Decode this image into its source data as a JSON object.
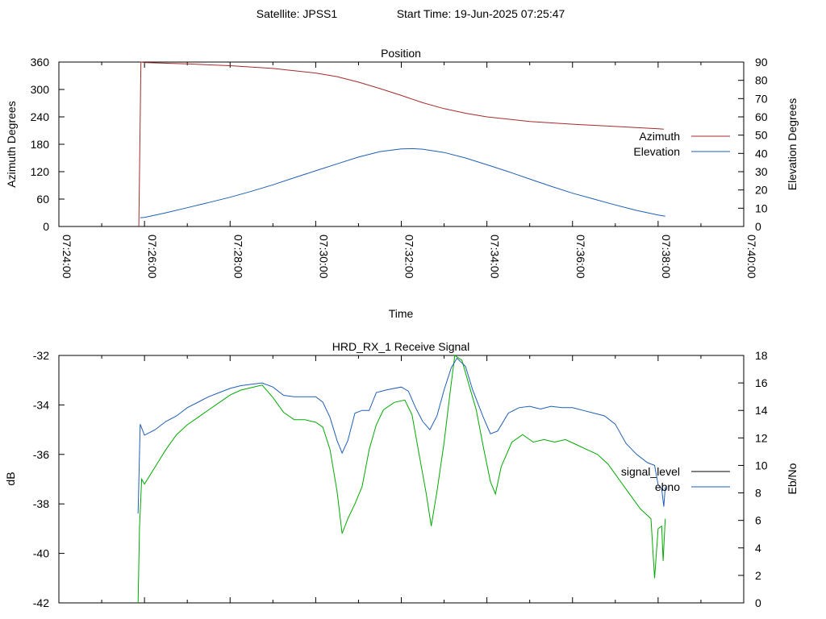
{
  "header": {
    "satellite": "Satellite: JPSS1",
    "start_time": "Start Time: 19-Jun-2025 07:25:47"
  },
  "chart_data": [
    {
      "type": "line",
      "title": "Position",
      "xlabel": "Time",
      "ylabel": "Azimuth Degrees",
      "y2label": "Elevation Degrees",
      "xlim": [
        "07:24:00",
        "07:40:00"
      ],
      "x_ticks": [
        "07:24:00",
        "07:26:00",
        "07:28:00",
        "07:30:00",
        "07:32:00",
        "07:34:00",
        "07:36:00",
        "07:38:00",
        "07:40:00"
      ],
      "ylim": [
        0,
        360
      ],
      "y_ticks": [
        "0",
        "60",
        "120",
        "180",
        "240",
        "300",
        "360"
      ],
      "y2lim": [
        0,
        90
      ],
      "y2_ticks": [
        "0",
        "10",
        "20",
        "30",
        "40",
        "50",
        "60",
        "70",
        "80",
        "90"
      ],
      "legend_position": "right",
      "series": [
        {
          "name": "Azimuth",
          "axis": "y",
          "color": "#a52a2a",
          "points": [
            [
              "07:25:52",
              0
            ],
            [
              "07:25:55",
              360
            ],
            [
              "07:26:00",
              359
            ],
            [
              "07:27:00",
              356
            ],
            [
              "07:28:00",
              352
            ],
            [
              "07:29:00",
              346
            ],
            [
              "07:30:00",
              336
            ],
            [
              "07:30:30",
              328
            ],
            [
              "07:31:00",
              316
            ],
            [
              "07:31:30",
              302
            ],
            [
              "07:32:00",
              287
            ],
            [
              "07:32:30",
              271
            ],
            [
              "07:33:00",
              258
            ],
            [
              "07:33:30",
              248
            ],
            [
              "07:34:00",
              240
            ],
            [
              "07:35:00",
              230
            ],
            [
              "07:36:00",
              224
            ],
            [
              "07:37:00",
              219
            ],
            [
              "07:38:00",
              214
            ],
            [
              "07:38:08",
              213
            ]
          ]
        },
        {
          "name": "Elevation",
          "axis": "y2",
          "color": "#1f5fb4",
          "points": [
            [
              "07:25:54",
              4.8
            ],
            [
              "07:26:00",
              5
            ],
            [
              "07:26:30",
              7.5
            ],
            [
              "07:27:00",
              10.3
            ],
            [
              "07:27:30",
              13.1
            ],
            [
              "07:28:00",
              16
            ],
            [
              "07:28:30",
              19.3
            ],
            [
              "07:29:00",
              22.8
            ],
            [
              "07:29:30",
              26.7
            ],
            [
              "07:30:00",
              30.5
            ],
            [
              "07:30:30",
              34.3
            ],
            [
              "07:31:00",
              38
            ],
            [
              "07:31:30",
              41
            ],
            [
              "07:32:00",
              42.5
            ],
            [
              "07:32:15",
              42.6
            ],
            [
              "07:32:30",
              42.3
            ],
            [
              "07:33:00",
              40.5
            ],
            [
              "07:33:30",
              37.5
            ],
            [
              "07:34:00",
              33.8
            ],
            [
              "07:34:30",
              30
            ],
            [
              "07:35:00",
              26
            ],
            [
              "07:35:30",
              22
            ],
            [
              "07:36:00",
              18.2
            ],
            [
              "07:36:30",
              15
            ],
            [
              "07:37:00",
              11.8
            ],
            [
              "07:37:30",
              8.8
            ],
            [
              "07:38:00",
              6.3
            ],
            [
              "07:38:10",
              5.6
            ]
          ]
        }
      ]
    },
    {
      "type": "line",
      "title": "HRD_RX_1 Receive Signal",
      "ylabel": "dB",
      "y2label": "Eb/No",
      "xlim": [
        "07:24:00",
        "07:40:00"
      ],
      "ylim": [
        -42,
        -32
      ],
      "y_ticks": [
        "-42",
        "-40",
        "-38",
        "-36",
        "-34",
        "-32"
      ],
      "y2lim": [
        0,
        18
      ],
      "y2_ticks": [
        "0",
        "2",
        "4",
        "6",
        "8",
        "10",
        "12",
        "14",
        "16",
        "18"
      ],
      "legend_position": "right",
      "series": [
        {
          "name": "signal_level",
          "axis": "y",
          "legend_color": "#000000",
          "color": "#00aa00",
          "points": [
            [
              "07:25:51",
              -42
            ],
            [
              "07:25:53",
              -39
            ],
            [
              "07:25:56",
              -37
            ],
            [
              "07:26:00",
              -37.2
            ],
            [
              "07:26:15",
              -36.5
            ],
            [
              "07:26:30",
              -35.8
            ],
            [
              "07:26:45",
              -35.2
            ],
            [
              "07:27:00",
              -34.8
            ],
            [
              "07:27:15",
              -34.5
            ],
            [
              "07:27:30",
              -34.2
            ],
            [
              "07:27:45",
              -33.9
            ],
            [
              "07:28:00",
              -33.6
            ],
            [
              "07:28:15",
              -33.4
            ],
            [
              "07:28:30",
              -33.3
            ],
            [
              "07:28:45",
              -33.2
            ],
            [
              "07:29:00",
              -33.7
            ],
            [
              "07:29:15",
              -34.3
            ],
            [
              "07:29:30",
              -34.6
            ],
            [
              "07:29:45",
              -34.6
            ],
            [
              "07:30:00",
              -34.7
            ],
            [
              "07:30:10",
              -34.9
            ],
            [
              "07:30:20",
              -35.8
            ],
            [
              "07:30:30",
              -37.5
            ],
            [
              "07:30:37",
              -39.2
            ],
            [
              "07:30:45",
              -38.6
            ],
            [
              "07:30:55",
              -38
            ],
            [
              "07:31:05",
              -37.3
            ],
            [
              "07:31:15",
              -35.8
            ],
            [
              "07:31:25",
              -34.8
            ],
            [
              "07:31:35",
              -34.2
            ],
            [
              "07:31:50",
              -33.9
            ],
            [
              "07:32:05",
              -33.8
            ],
            [
              "07:32:15",
              -34.4
            ],
            [
              "07:32:25",
              -36
            ],
            [
              "07:32:35",
              -37.6
            ],
            [
              "07:32:42",
              -38.9
            ],
            [
              "07:32:50",
              -37.5
            ],
            [
              "07:33:00",
              -35.5
            ],
            [
              "07:33:08",
              -33.6
            ],
            [
              "07:33:15",
              -32
            ],
            [
              "07:33:25",
              -32.2
            ],
            [
              "07:33:35",
              -33.2
            ],
            [
              "07:33:45",
              -34.2
            ],
            [
              "07:33:55",
              -35.7
            ],
            [
              "07:34:05",
              -37.1
            ],
            [
              "07:34:12",
              -37.6
            ],
            [
              "07:34:20",
              -36.5
            ],
            [
              "07:34:35",
              -35.5
            ],
            [
              "07:34:50",
              -35.2
            ],
            [
              "07:35:05",
              -35.5
            ],
            [
              "07:35:20",
              -35.4
            ],
            [
              "07:35:35",
              -35.5
            ],
            [
              "07:35:50",
              -35.4
            ],
            [
              "07:36:05",
              -35.6
            ],
            [
              "07:36:20",
              -35.8
            ],
            [
              "07:36:35",
              -36
            ],
            [
              "07:36:50",
              -36.4
            ],
            [
              "07:37:05",
              -37
            ],
            [
              "07:37:20",
              -37.6
            ],
            [
              "07:37:35",
              -38.2
            ],
            [
              "07:37:50",
              -38.6
            ],
            [
              "07:37:55",
              -41
            ],
            [
              "07:38:00",
              -39
            ],
            [
              "07:38:05",
              -38.9
            ],
            [
              "07:38:07",
              -40.3
            ],
            [
              "07:38:10",
              -38.6
            ]
          ]
        },
        {
          "name": "ebno",
          "axis": "y2",
          "color": "#1f5fb4",
          "points": [
            [
              "07:25:51",
              6.5
            ],
            [
              "07:25:54",
              13
            ],
            [
              "07:26:00",
              12.2
            ],
            [
              "07:26:15",
              12.6
            ],
            [
              "07:26:30",
              13.2
            ],
            [
              "07:26:45",
              13.6
            ],
            [
              "07:27:00",
              14.2
            ],
            [
              "07:27:15",
              14.6
            ],
            [
              "07:27:30",
              15
            ],
            [
              "07:27:45",
              15.3
            ],
            [
              "07:28:00",
              15.6
            ],
            [
              "07:28:15",
              15.8
            ],
            [
              "07:28:30",
              15.9
            ],
            [
              "07:28:45",
              16
            ],
            [
              "07:29:00",
              15.7
            ],
            [
              "07:29:15",
              15.1
            ],
            [
              "07:29:30",
              15
            ],
            [
              "07:29:45",
              15
            ],
            [
              "07:30:00",
              15
            ],
            [
              "07:30:10",
              14.6
            ],
            [
              "07:30:20",
              13.5
            ],
            [
              "07:30:30",
              11.8
            ],
            [
              "07:30:37",
              10.9
            ],
            [
              "07:30:45",
              11.8
            ],
            [
              "07:30:55",
              13.8
            ],
            [
              "07:31:05",
              14
            ],
            [
              "07:31:15",
              14
            ],
            [
              "07:31:25",
              15.3
            ],
            [
              "07:31:40",
              15.5
            ],
            [
              "07:32:00",
              15.7
            ],
            [
              "07:32:10",
              15.4
            ],
            [
              "07:32:20",
              14.2
            ],
            [
              "07:32:30",
              13.2
            ],
            [
              "07:32:40",
              12.6
            ],
            [
              "07:32:50",
              13.6
            ],
            [
              "07:33:00",
              15.5
            ],
            [
              "07:33:10",
              17.1
            ],
            [
              "07:33:18",
              17.8
            ],
            [
              "07:33:30",
              17.2
            ],
            [
              "07:33:40",
              15.5
            ],
            [
              "07:33:55",
              13.5
            ],
            [
              "07:34:05",
              12.3
            ],
            [
              "07:34:15",
              12.5
            ],
            [
              "07:34:30",
              13.8
            ],
            [
              "07:34:45",
              14.2
            ],
            [
              "07:35:00",
              14.3
            ],
            [
              "07:35:15",
              14.1
            ],
            [
              "07:35:30",
              14.3
            ],
            [
              "07:35:45",
              14.2
            ],
            [
              "07:36:00",
              14.2
            ],
            [
              "07:36:15",
              14
            ],
            [
              "07:36:30",
              13.8
            ],
            [
              "07:36:45",
              13.6
            ],
            [
              "07:37:00",
              13
            ],
            [
              "07:37:15",
              11.6
            ],
            [
              "07:37:30",
              10.8
            ],
            [
              "07:37:45",
              10.2
            ],
            [
              "07:37:55",
              10
            ],
            [
              "07:38:00",
              8.6
            ],
            [
              "07:38:05",
              8.3
            ],
            [
              "07:38:08",
              7
            ],
            [
              "07:38:10",
              8.4
            ]
          ]
        }
      ]
    }
  ]
}
